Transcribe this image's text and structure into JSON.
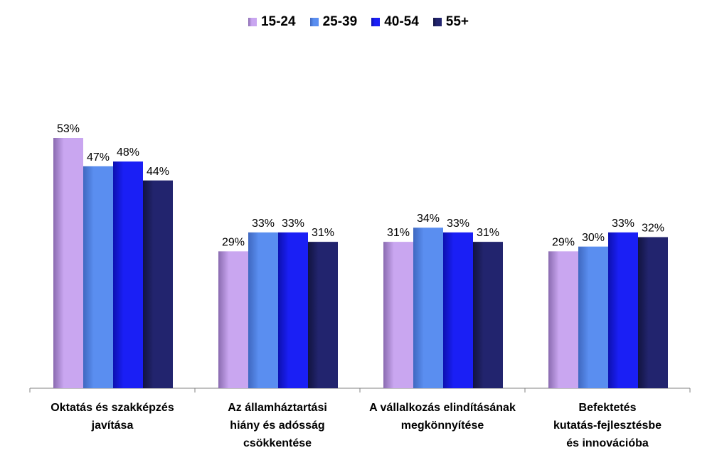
{
  "chart_data": {
    "type": "bar",
    "categories": [
      [
        "Oktatás és szakképzés",
        "javítása"
      ],
      [
        "Az államháztartási",
        "hiány és adósság",
        "csökkentése"
      ],
      [
        "A vállalkozás elindításának",
        "megkönnyítése"
      ],
      [
        "Befektetés",
        "kutatás-fejlesztésbe",
        "és innovációba"
      ]
    ],
    "series": [
      {
        "name": "15-24",
        "values": [
          53,
          29,
          31,
          29
        ],
        "color": "#c9a6f0",
        "shade": "#8a6bb0"
      },
      {
        "name": "25-39",
        "values": [
          47,
          33,
          34,
          30
        ],
        "color": "#5a8ef0",
        "shade": "#3f68c0"
      },
      {
        "name": "40-54",
        "values": [
          48,
          33,
          33,
          33
        ],
        "color": "#1a1ff5",
        "shade": "#0d11b0"
      },
      {
        "name": "55+",
        "values": [
          44,
          31,
          31,
          32
        ],
        "color": "#22246e",
        "shade": "#121440"
      }
    ],
    "value_suffix": "%",
    "ylim": [
      0,
      53
    ],
    "legend_position": "top",
    "grid": false
  }
}
